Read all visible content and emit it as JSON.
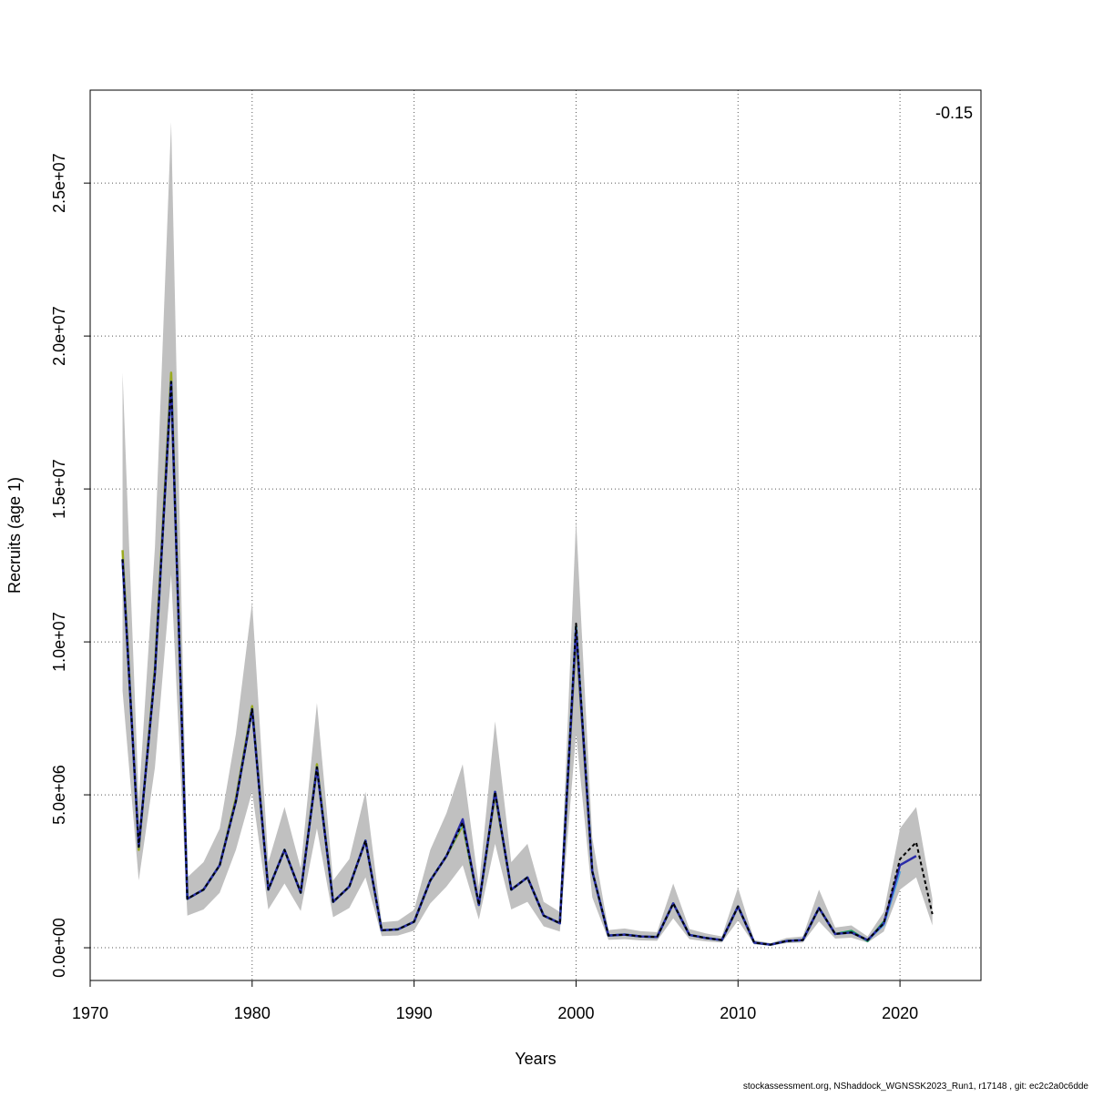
{
  "chart_data": {
    "type": "line",
    "ylabel": "Recruits (age 1)",
    "xlabel": "Years",
    "annotation": "-0.15",
    "footer": "stockassessment.org, NShaddock_WGNSSK2023_Run1, r17148 , git: ec2c2a0c6dde",
    "xlim": [
      1970,
      2025
    ],
    "ylim": [
      -1070000,
      28040000
    ],
    "xticks": [
      1970,
      1980,
      1990,
      2000,
      2010,
      2020
    ],
    "yticks": [
      {
        "value": 0,
        "label": "0.0e+00"
      },
      {
        "value": 5000000,
        "label": "5.0e+06"
      },
      {
        "value": 10000000,
        "label": "1.0e+07"
      },
      {
        "value": 15000000,
        "label": "1.5e+07"
      },
      {
        "value": 20000000,
        "label": "2.0e+07"
      },
      {
        "value": 25000000,
        "label": "2.5e+07"
      }
    ],
    "grid": true,
    "band_color": "#c0c0c0",
    "x": [
      1972,
      1973,
      1974,
      1975,
      1976,
      1977,
      1978,
      1979,
      1980,
      1981,
      1982,
      1983,
      1984,
      1985,
      1986,
      1987,
      1988,
      1989,
      1990,
      1991,
      1992,
      1993,
      1994,
      1995,
      1996,
      1997,
      1998,
      1999,
      2000,
      2001,
      2002,
      2003,
      2004,
      2005,
      2006,
      2007,
      2008,
      2009,
      2010,
      2011,
      2012,
      2013,
      2014,
      2015,
      2016,
      2017,
      2018,
      2019,
      2020,
      2021,
      2022
    ],
    "lower": [
      8400000,
      2200000,
      5900000,
      12200000,
      1050000,
      1250000,
      1800000,
      3200000,
      5100000,
      1250000,
      2100000,
      1200000,
      3900000,
      1000000,
      1300000,
      2300000,
      380000,
      400000,
      560000,
      1450000,
      2000000,
      2700000,
      920000,
      3400000,
      1250000,
      1500000,
      700000,
      530000,
      7000000,
      1650000,
      260000,
      280000,
      240000,
      230000,
      960000,
      280000,
      210000,
      170000,
      890000,
      110000,
      70000,
      150000,
      170000,
      860000,
      300000,
      330000,
      170000,
      530000,
      1900000,
      2300000,
      730000
    ],
    "upper": [
      18800000,
      4800000,
      13100000,
      27000000,
      2300000,
      2800000,
      3900000,
      7000000,
      11300000,
      2800000,
      4600000,
      2600000,
      8000000,
      2200000,
      2900000,
      5100000,
      830000,
      880000,
      1240000,
      3200000,
      4400000,
      6000000,
      2000000,
      7400000,
      2800000,
      3400000,
      1500000,
      1170000,
      14000000,
      3600000,
      580000,
      630000,
      540000,
      510000,
      2100000,
      610000,
      470000,
      370000,
      1970000,
      250000,
      150000,
      320000,
      370000,
      1900000,
      660000,
      730000,
      370000,
      1170000,
      3900000,
      4600000,
      1600000
    ],
    "series": [
      {
        "color": "#9aaa1f",
        "values": [
          13000000,
          3200000,
          9200000,
          18800000,
          1600000,
          1900000,
          2700000,
          4900000,
          7900000,
          1900000,
          3200000,
          1800000,
          6000000,
          1500000,
          2000000,
          3500000,
          570000,
          600000,
          850000,
          2200000,
          3000000,
          4000000,
          1400000,
          5000000,
          1900000,
          2300000,
          1050000,
          800000,
          10200000,
          2500000,
          400000,
          430000,
          370000,
          350000,
          1450000,
          420000,
          320000,
          250000,
          1350000,
          170000,
          100000,
          220000,
          250000,
          1300000,
          450000,
          500000,
          250000,
          null,
          null,
          null,
          null
        ]
      },
      {
        "color": "#1a9e5a",
        "values": [
          12700000,
          3300000,
          9000000,
          18500000,
          1600000,
          1900000,
          2700000,
          4800000,
          7800000,
          1900000,
          3200000,
          1800000,
          5900000,
          1500000,
          2000000,
          3500000,
          570000,
          600000,
          850000,
          2200000,
          3000000,
          4100000,
          1400000,
          5100000,
          1900000,
          2300000,
          1050000,
          800000,
          10500000,
          2500000,
          400000,
          430000,
          370000,
          350000,
          1450000,
          420000,
          320000,
          250000,
          1350000,
          170000,
          100000,
          220000,
          250000,
          1300000,
          450000,
          550000,
          220000,
          850000,
          null,
          null,
          null
        ]
      },
      {
        "color": "#4fa3e0",
        "values": [
          12700000,
          3300000,
          9000000,
          18500000,
          1600000,
          1900000,
          2700000,
          4800000,
          7800000,
          1900000,
          3200000,
          1800000,
          5900000,
          1500000,
          2000000,
          3500000,
          570000,
          600000,
          850000,
          2200000,
          3000000,
          4100000,
          1400000,
          5100000,
          1900000,
          2300000,
          1050000,
          800000,
          10500000,
          2500000,
          400000,
          430000,
          370000,
          350000,
          1450000,
          420000,
          320000,
          250000,
          1350000,
          170000,
          100000,
          220000,
          250000,
          1300000,
          450000,
          500000,
          250000,
          750000,
          2500000,
          null,
          null
        ]
      },
      {
        "color": "#2b2ca8",
        "values": [
          12700000,
          3300000,
          9000000,
          18500000,
          1600000,
          1900000,
          2700000,
          4800000,
          7800000,
          1900000,
          3200000,
          1800000,
          5900000,
          1500000,
          2000000,
          3500000,
          570000,
          600000,
          850000,
          2200000,
          3000000,
          4200000,
          1400000,
          5100000,
          1900000,
          2300000,
          1050000,
          800000,
          10400000,
          2500000,
          400000,
          430000,
          370000,
          350000,
          1450000,
          420000,
          320000,
          250000,
          1350000,
          170000,
          100000,
          220000,
          250000,
          1300000,
          450000,
          500000,
          250000,
          800000,
          2700000,
          3000000,
          null
        ]
      },
      {
        "color": "#000000",
        "dashed": true,
        "values": [
          12700000,
          3300000,
          9000000,
          18500000,
          1600000,
          1900000,
          2700000,
          4800000,
          7800000,
          1900000,
          3200000,
          1800000,
          5900000,
          1500000,
          2000000,
          3500000,
          570000,
          600000,
          850000,
          2200000,
          3000000,
          4100000,
          1400000,
          5100000,
          1900000,
          2300000,
          1050000,
          800000,
          10600000,
          2500000,
          400000,
          430000,
          370000,
          350000,
          1450000,
          420000,
          320000,
          250000,
          1350000,
          170000,
          100000,
          220000,
          250000,
          1300000,
          450000,
          500000,
          250000,
          800000,
          2900000,
          3450000,
          1100000
        ]
      }
    ]
  }
}
